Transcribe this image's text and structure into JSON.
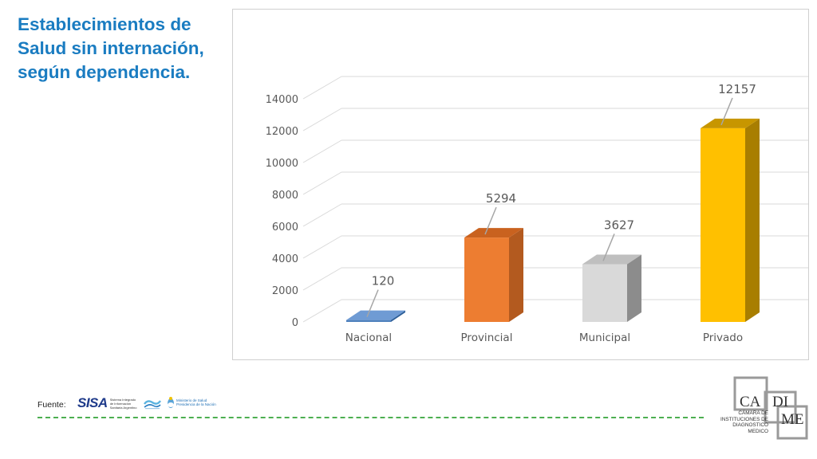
{
  "slide": {
    "title_lines": [
      "Establecimientos de",
      "Salud sin internación,",
      "según dependencia."
    ]
  },
  "chart_data": {
    "type": "bar",
    "style": "3d-column",
    "categories": [
      "Nacional",
      "Provincial",
      "Municipal",
      "Privado"
    ],
    "values": [
      120,
      5294,
      3627,
      12157
    ],
    "data_labels": [
      "120",
      "5294",
      "3627",
      "12157"
    ],
    "colors": [
      "#4f81bd",
      "#ed7d31",
      "#d9d9d9",
      "#ffc000"
    ],
    "side_colors": [
      "#2e5f99",
      "#b35a1f",
      "#8c8c8c",
      "#a87e00"
    ],
    "top_colors": [
      "#6f9bd4",
      "#c9621f",
      "#bfbfbf",
      "#c79600"
    ],
    "ylim": [
      0,
      14000
    ],
    "yticks": [
      "0",
      "2000",
      "4000",
      "6000",
      "8000",
      "10000",
      "12000",
      "14000"
    ],
    "title": "",
    "xlabel": "",
    "ylabel": "",
    "grid": true,
    "legend": "none"
  },
  "footer": {
    "source_label": "Fuente:",
    "sisa_mark": "SISA",
    "sisa_caption": "Sistema Integrado de Información Sanitaria Argentino",
    "ministerio_line1": "Ministerio de Salud",
    "ministerio_line2": "Presidencia de la Nación",
    "cadime_caption_lines": [
      "CÁMARA DE",
      "INSTITUCIONES DE",
      "DIAGNOSTICO",
      "MEDICO"
    ],
    "cadime_marks": [
      "CA",
      "DI",
      "ME"
    ],
    "rule_color": "#4caf50"
  }
}
